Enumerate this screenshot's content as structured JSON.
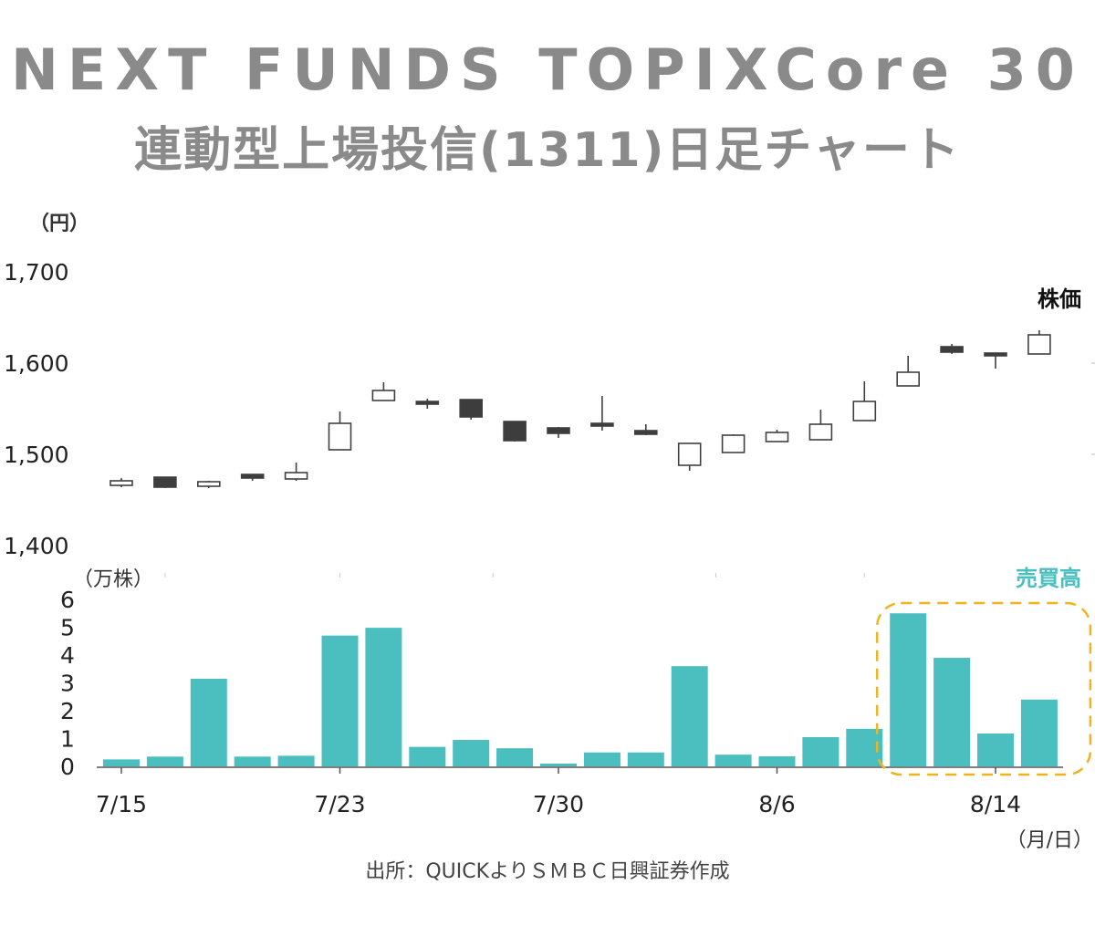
{
  "title": {
    "line1": "NEXT FUNDS TOPIXCore 30",
    "line2": "連動型上場投信(1311)日足チャート"
  },
  "price_unit": "（円）",
  "volume_unit": "（万株）",
  "date_unit": "（月/日）",
  "price_label": "株価",
  "volume_label": "売買高",
  "source": "出所：QUICKよりＳＭＢＣ日興証券作成",
  "colors": {
    "up_candle_fill": "#ffffff",
    "down_candle_fill": "#3d3d3d",
    "candle_stroke": "#404040",
    "volume_bar": "#4bbfbf",
    "volume_label": "#4bbfbf",
    "highlight_box": "#f0b41e",
    "title": "#8a8a8a"
  },
  "chart_data": [
    {
      "type": "candlestick",
      "name": "株価",
      "ylabel": "（円）",
      "ylim": [
        1400,
        1700
      ],
      "yticks": [
        "1,400",
        "1,500",
        "1,600",
        "1,700"
      ],
      "ytick_values": [
        1400,
        1500,
        1600,
        1700
      ],
      "candles": [
        {
          "open": 1466,
          "high": 1474,
          "low": 1464,
          "close": 1471
        },
        {
          "open": 1475,
          "high": 1475,
          "low": 1463,
          "close": 1464
        },
        {
          "open": 1465,
          "high": 1471,
          "low": 1463,
          "close": 1470
        },
        {
          "open": 1478,
          "high": 1478,
          "low": 1471,
          "close": 1474
        },
        {
          "open": 1473,
          "high": 1491,
          "low": 1471,
          "close": 1480
        },
        {
          "open": 1505,
          "high": 1547,
          "low": 1505,
          "close": 1534
        },
        {
          "open": 1559,
          "high": 1579,
          "low": 1559,
          "close": 1570
        },
        {
          "open": 1558,
          "high": 1561,
          "low": 1550,
          "close": 1556
        },
        {
          "open": 1560,
          "high": 1560,
          "low": 1538,
          "close": 1541
        },
        {
          "open": 1536,
          "high": 1536,
          "low": 1514,
          "close": 1515
        },
        {
          "open": 1529,
          "high": 1530,
          "low": 1518,
          "close": 1523
        },
        {
          "open": 1534,
          "high": 1564,
          "low": 1526,
          "close": 1533
        },
        {
          "open": 1526,
          "high": 1533,
          "low": 1521,
          "close": 1522
        },
        {
          "open": 1488,
          "high": 1512,
          "low": 1482,
          "close": 1512
        },
        {
          "open": 1502,
          "high": 1522,
          "low": 1502,
          "close": 1521
        },
        {
          "open": 1514,
          "high": 1527,
          "low": 1514,
          "close": 1524
        },
        {
          "open": 1516,
          "high": 1549,
          "low": 1516,
          "close": 1533
        },
        {
          "open": 1537,
          "high": 1580,
          "low": 1537,
          "close": 1558
        },
        {
          "open": 1575,
          "high": 1608,
          "low": 1575,
          "close": 1590
        },
        {
          "open": 1618,
          "high": 1621,
          "low": 1610,
          "close": 1612
        },
        {
          "open": 1611,
          "high": 1611,
          "low": 1594,
          "close": 1609
        },
        {
          "open": 1610,
          "high": 1636,
          "low": 1610,
          "close": 1631
        }
      ]
    },
    {
      "type": "bar",
      "name": "売買高",
      "ylabel": "（万株）",
      "ylim": [
        0,
        6
      ],
      "yticks": [
        "0",
        "1",
        "2",
        "3",
        "4",
        "5",
        "6"
      ],
      "ytick_values": [
        0,
        1,
        2,
        3,
        4,
        5,
        6
      ],
      "xtick_labels": [
        {
          "index": 0,
          "label": "7/15"
        },
        {
          "index": 5,
          "label": "7/23"
        },
        {
          "index": 10,
          "label": "7/30"
        },
        {
          "index": 15,
          "label": "8/6"
        },
        {
          "index": 20,
          "label": "8/14"
        }
      ],
      "values": [
        0.25,
        0.35,
        3.15,
        0.35,
        0.38,
        4.7,
        4.98,
        0.7,
        0.95,
        0.65,
        0.1,
        0.5,
        0.5,
        3.6,
        0.42,
        0.36,
        1.05,
        1.35,
        5.5,
        3.9,
        1.18,
        2.4
      ],
      "highlight_range": [
        18,
        21
      ]
    }
  ]
}
